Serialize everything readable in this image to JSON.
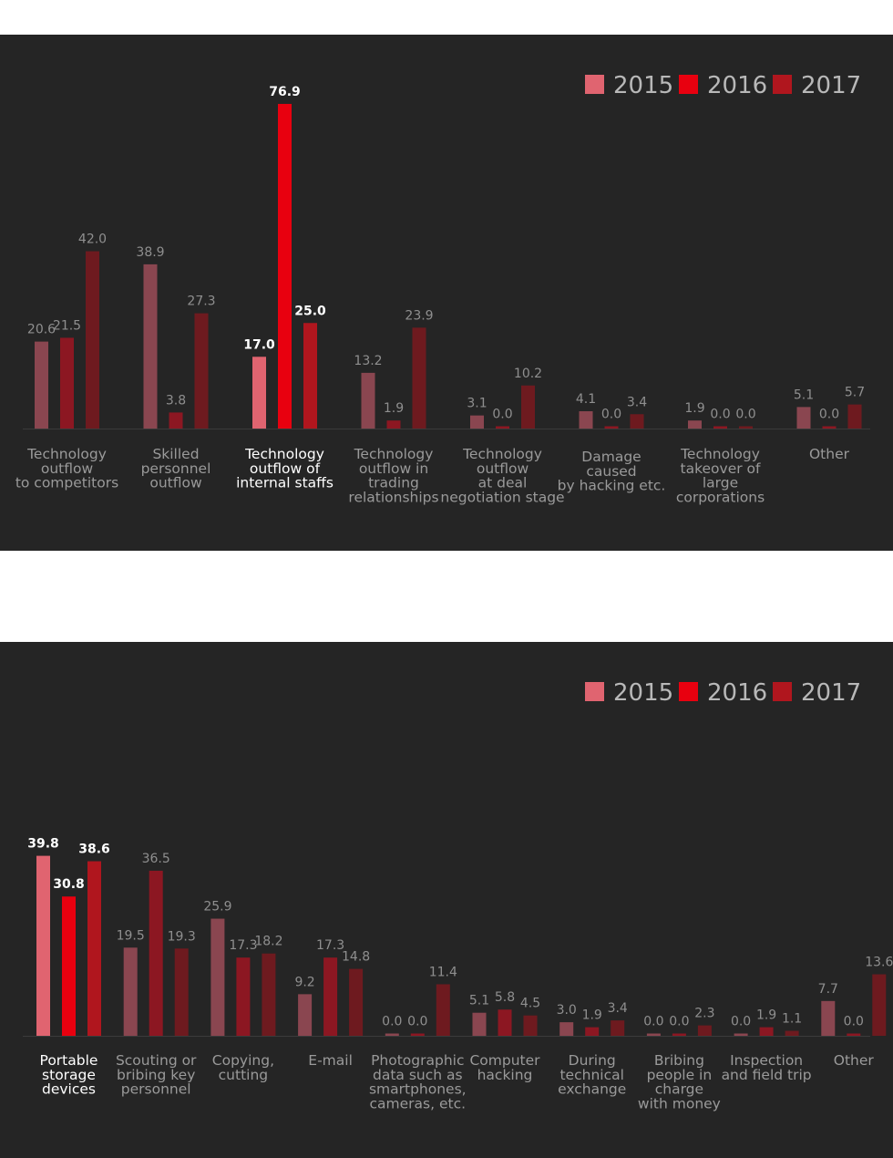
{
  "chart_data": [
    {
      "type": "bar",
      "legend": [
        "2015",
        "2016",
        "2017"
      ],
      "colors": [
        "#8a4650",
        "#8c1722",
        "#6e1a1f"
      ],
      "highlight_colors": [
        "#e06470",
        "#e8000f",
        "#b0161e"
      ],
      "categories": [
        [
          "Technology",
          "outflow",
          "to competitors"
        ],
        [
          "Skilled",
          "personnel",
          "outflow"
        ],
        [
          "Technology",
          "outflow of",
          "internal staffs"
        ],
        [
          "Technology",
          "outflow in",
          "trading",
          "relationships"
        ],
        [
          "Technology",
          "outflow",
          "at deal",
          "negotiation stage"
        ],
        [
          "Damage",
          "caused",
          "by hacking etc."
        ],
        [
          "Technology",
          "takeover of",
          "large",
          "corporations"
        ],
        [
          "Other"
        ]
      ],
      "highlight_index": 2,
      "series": [
        {
          "name": "2015",
          "values": [
            "20.6",
            "38.9",
            "17.0",
            "13.2",
            "3.1",
            "4.1",
            "1.9",
            "5.1"
          ]
        },
        {
          "name": "2016",
          "values": [
            "21.5",
            "3.8",
            "76.9",
            "1.9",
            "0.0",
            "0.0",
            "0.0",
            "0.0"
          ]
        },
        {
          "name": "2017",
          "values": [
            "42.0",
            "27.3",
            "25.0",
            "23.9",
            "10.2",
            "3.4",
            "0.0",
            "5.7"
          ]
        }
      ]
    },
    {
      "type": "bar",
      "legend": [
        "2015",
        "2016",
        "2017"
      ],
      "colors": [
        "#8a4650",
        "#8c1722",
        "#6e1a1f"
      ],
      "highlight_colors": [
        "#e06470",
        "#e8000f",
        "#b0161e"
      ],
      "categories": [
        [
          "Portable",
          "storage",
          "devices"
        ],
        [
          "Scouting or",
          "bribing key",
          "personnel"
        ],
        [
          "Copying,",
          "cutting"
        ],
        [
          "E-mail"
        ],
        [
          "Photographic",
          "data such as",
          "smartphones,",
          "cameras, etc."
        ],
        [
          "Computer",
          "hacking"
        ],
        [
          "During",
          "technical",
          "exchange"
        ],
        [
          "Bribing",
          "people in",
          "charge",
          "with money"
        ],
        [
          "Inspection",
          "and field trip"
        ],
        [
          "Other"
        ]
      ],
      "highlight_index": 0,
      "series": [
        {
          "name": "2015",
          "values": [
            "39.8",
            "19.5",
            "25.9",
            "9.2",
            "0.0",
            "5.1",
            "3.0",
            "0.0",
            "0.0",
            "7.7"
          ]
        },
        {
          "name": "2016",
          "values": [
            "30.8",
            "36.5",
            "17.3",
            "17.3",
            "0.0",
            "5.8",
            "1.9",
            "0.0",
            "1.9",
            "0.0"
          ]
        },
        {
          "name": "2017",
          "values": [
            "38.6",
            "19.3",
            "18.2",
            "14.8",
            "11.4",
            "4.5",
            "3.4",
            "2.3",
            "1.1",
            "13.6"
          ]
        }
      ]
    }
  ]
}
